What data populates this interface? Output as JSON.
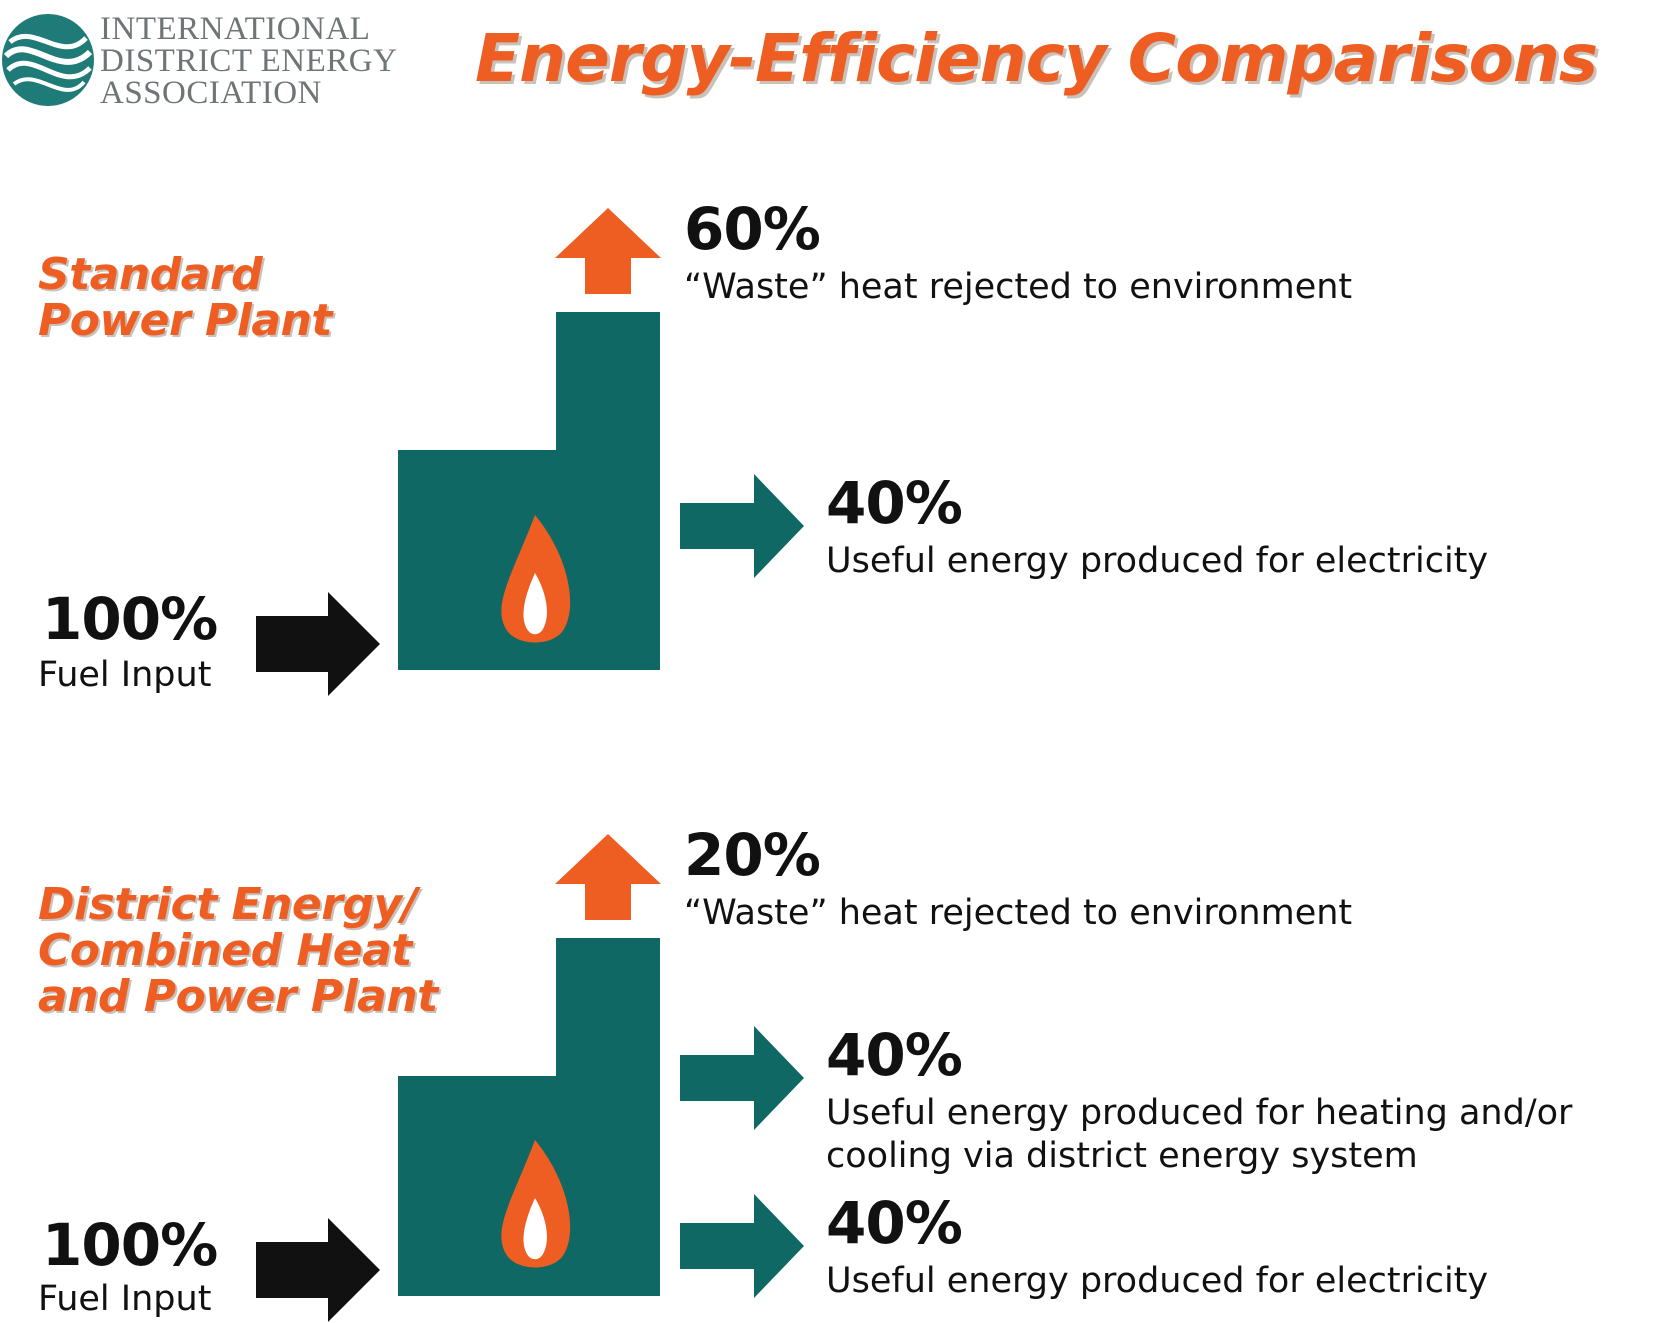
{
  "logo": {
    "lines": [
      "INTERNATIONAL",
      "DISTRICT ENERGY",
      "ASSOCIATION"
    ],
    "icon": "globe-swirl-icon",
    "color": "#1f7b78"
  },
  "title": "Energy-Efficiency Comparisons",
  "colors": {
    "accent_orange": "#ee5e22",
    "plant_teal": "#0f6864",
    "arrow_black": "#111111"
  },
  "standard": {
    "label_lines": [
      "Standard",
      "Power Plant"
    ],
    "input": {
      "percent": "100%",
      "label": "Fuel Input"
    },
    "waste": {
      "percent": "60%",
      "label": "“Waste” heat rejected to environment"
    },
    "electricity": {
      "percent": "40%",
      "label": "Useful energy produced for electricity"
    }
  },
  "chp": {
    "label_lines": [
      "District Energy/",
      "Combined Heat",
      "and Power Plant"
    ],
    "input": {
      "percent": "100%",
      "label": "Fuel Input"
    },
    "waste": {
      "percent": "20%",
      "label": "“Waste” heat rejected to environment"
    },
    "heating": {
      "percent": "40%",
      "label_lines": [
        "Useful energy produced for heating and/or",
        "cooling via district energy system"
      ]
    },
    "electricity": {
      "percent": "40%",
      "label": "Useful energy produced for electricity"
    }
  }
}
